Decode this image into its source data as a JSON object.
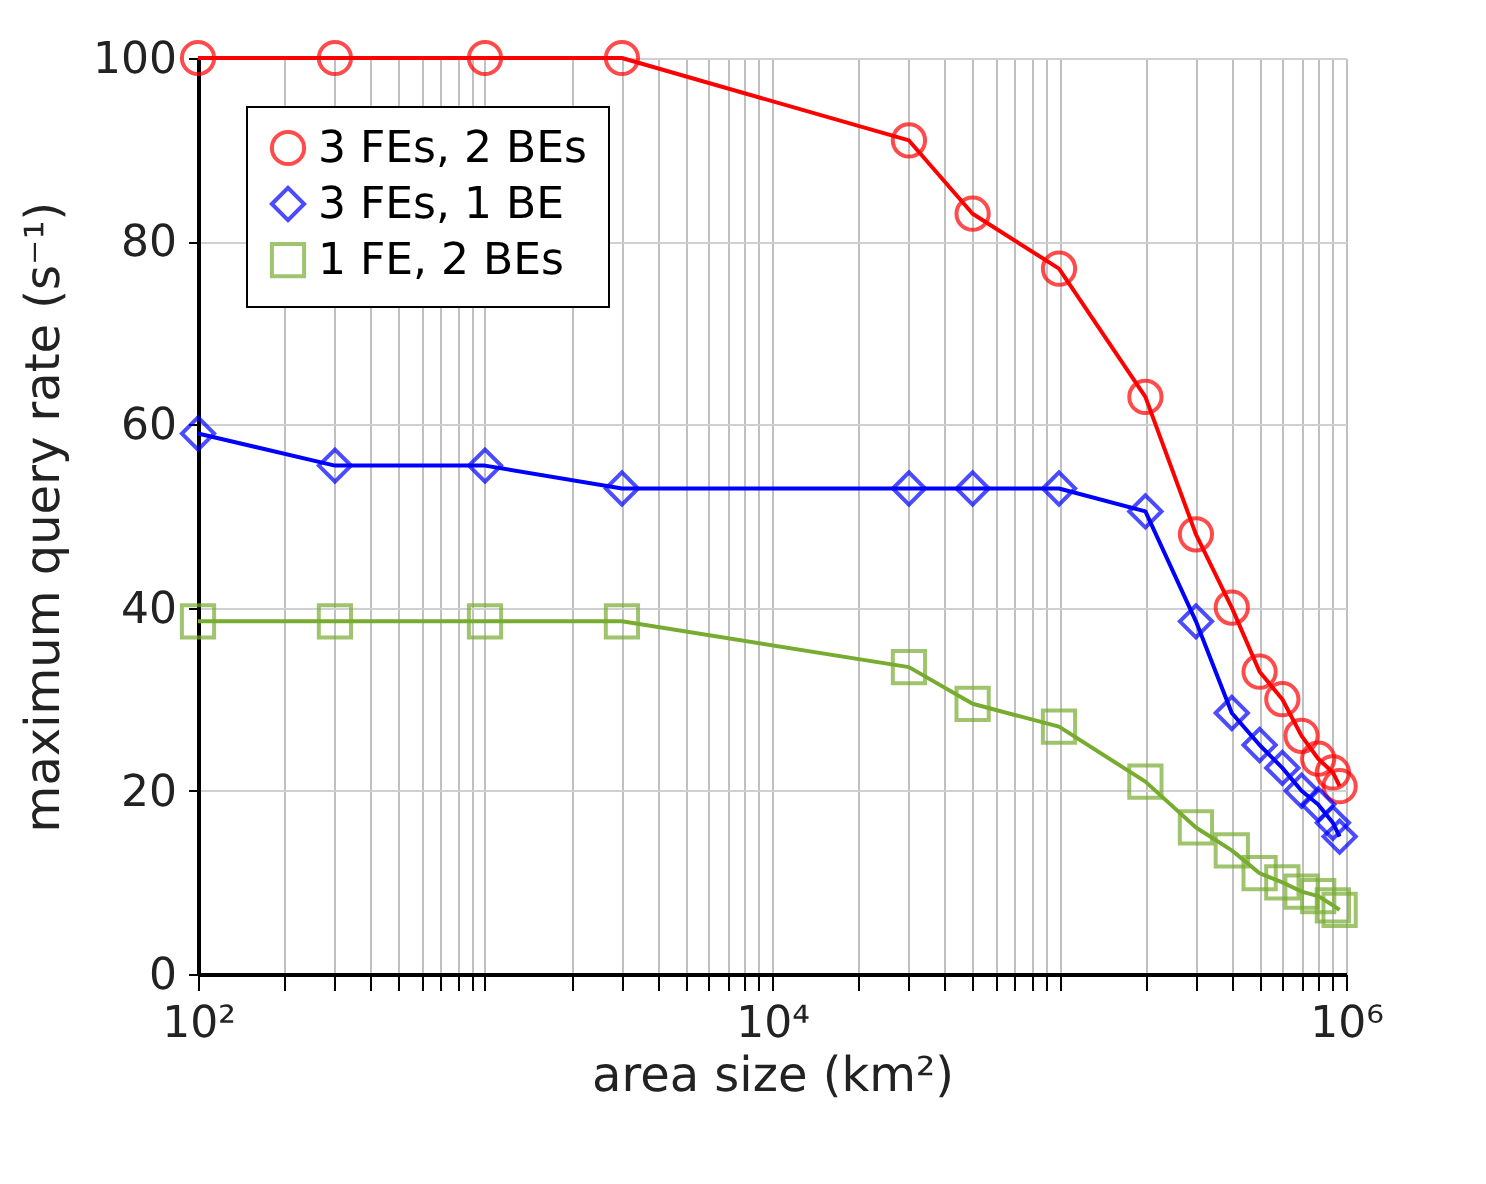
{
  "chart_data": {
    "type": "line",
    "xlabel": "area size (km²)",
    "ylabel": "maximum query rate (s⁻¹)",
    "log": "x",
    "grid": true,
    "legend": "top left",
    "line_style": "solid",
    "xlim": [
      100,
      1000000
    ],
    "ylim": [
      0,
      100
    ],
    "yticks": [
      0,
      20,
      40,
      60,
      80,
      100
    ],
    "xticks": [
      {
        "value": 100,
        "label": "10²"
      },
      {
        "value": 200,
        "label": null
      },
      {
        "value": 300,
        "label": null
      },
      {
        "value": 400,
        "label": null
      },
      {
        "value": 500,
        "label": null
      },
      {
        "value": 600,
        "label": null
      },
      {
        "value": 700,
        "label": null
      },
      {
        "value": 800,
        "label": null
      },
      {
        "value": 900,
        "label": null
      },
      {
        "value": 1000,
        "label": null
      },
      {
        "value": 2000,
        "label": null
      },
      {
        "value": 3000,
        "label": null
      },
      {
        "value": 4000,
        "label": null
      },
      {
        "value": 5000,
        "label": null
      },
      {
        "value": 6000,
        "label": null
      },
      {
        "value": 7000,
        "label": null
      },
      {
        "value": 8000,
        "label": null
      },
      {
        "value": 9000,
        "label": null
      },
      {
        "value": 10000,
        "label": "10⁴"
      },
      {
        "value": 20000,
        "label": null
      },
      {
        "value": 30000,
        "label": null
      },
      {
        "value": 40000,
        "label": null
      },
      {
        "value": 50000,
        "label": null
      },
      {
        "value": 60000,
        "label": null
      },
      {
        "value": 70000,
        "label": null
      },
      {
        "value": 80000,
        "label": null
      },
      {
        "value": 90000,
        "label": null
      },
      {
        "value": 100000,
        "label": null
      },
      {
        "value": 200000,
        "label": null
      },
      {
        "value": 300000,
        "label": null
      },
      {
        "value": 400000,
        "label": null
      },
      {
        "value": 500000,
        "label": null
      },
      {
        "value": 600000,
        "label": null
      },
      {
        "value": 700000,
        "label": null
      },
      {
        "value": 800000,
        "label": null
      },
      {
        "value": 900000,
        "label": null
      },
      {
        "value": 1000000,
        "label": "10⁶"
      }
    ],
    "x": [
      100,
      300,
      1000,
      3000,
      30000,
      50000,
      100000,
      200000,
      300000,
      400000,
      500000,
      600000,
      700000,
      800000,
      900000,
      950000
    ],
    "series": [
      {
        "name": "3 FEs, 2 BEs",
        "color": "#ff0000",
        "marker": "circle",
        "values": [
          100,
          100,
          100,
          100,
          91,
          83,
          77,
          63,
          48,
          40,
          33,
          30,
          26,
          23.5,
          22,
          20.5
        ]
      },
      {
        "name": "3 FEs, 1 BE",
        "color": "#0000ff",
        "marker": "diamond",
        "values": [
          59,
          55.5,
          55.5,
          53,
          53,
          53,
          53,
          50.5,
          38.5,
          28.5,
          25,
          22.5,
          20,
          18.5,
          16.5,
          15
        ]
      },
      {
        "name": "1 FE, 2 BEs",
        "color": "#77ac30",
        "marker": "square",
        "values": [
          38.5,
          38.5,
          38.5,
          38.5,
          33.5,
          29.5,
          27,
          21,
          16,
          13.5,
          11,
          10,
          9,
          8.5,
          7.5,
          7
        ]
      }
    ]
  }
}
